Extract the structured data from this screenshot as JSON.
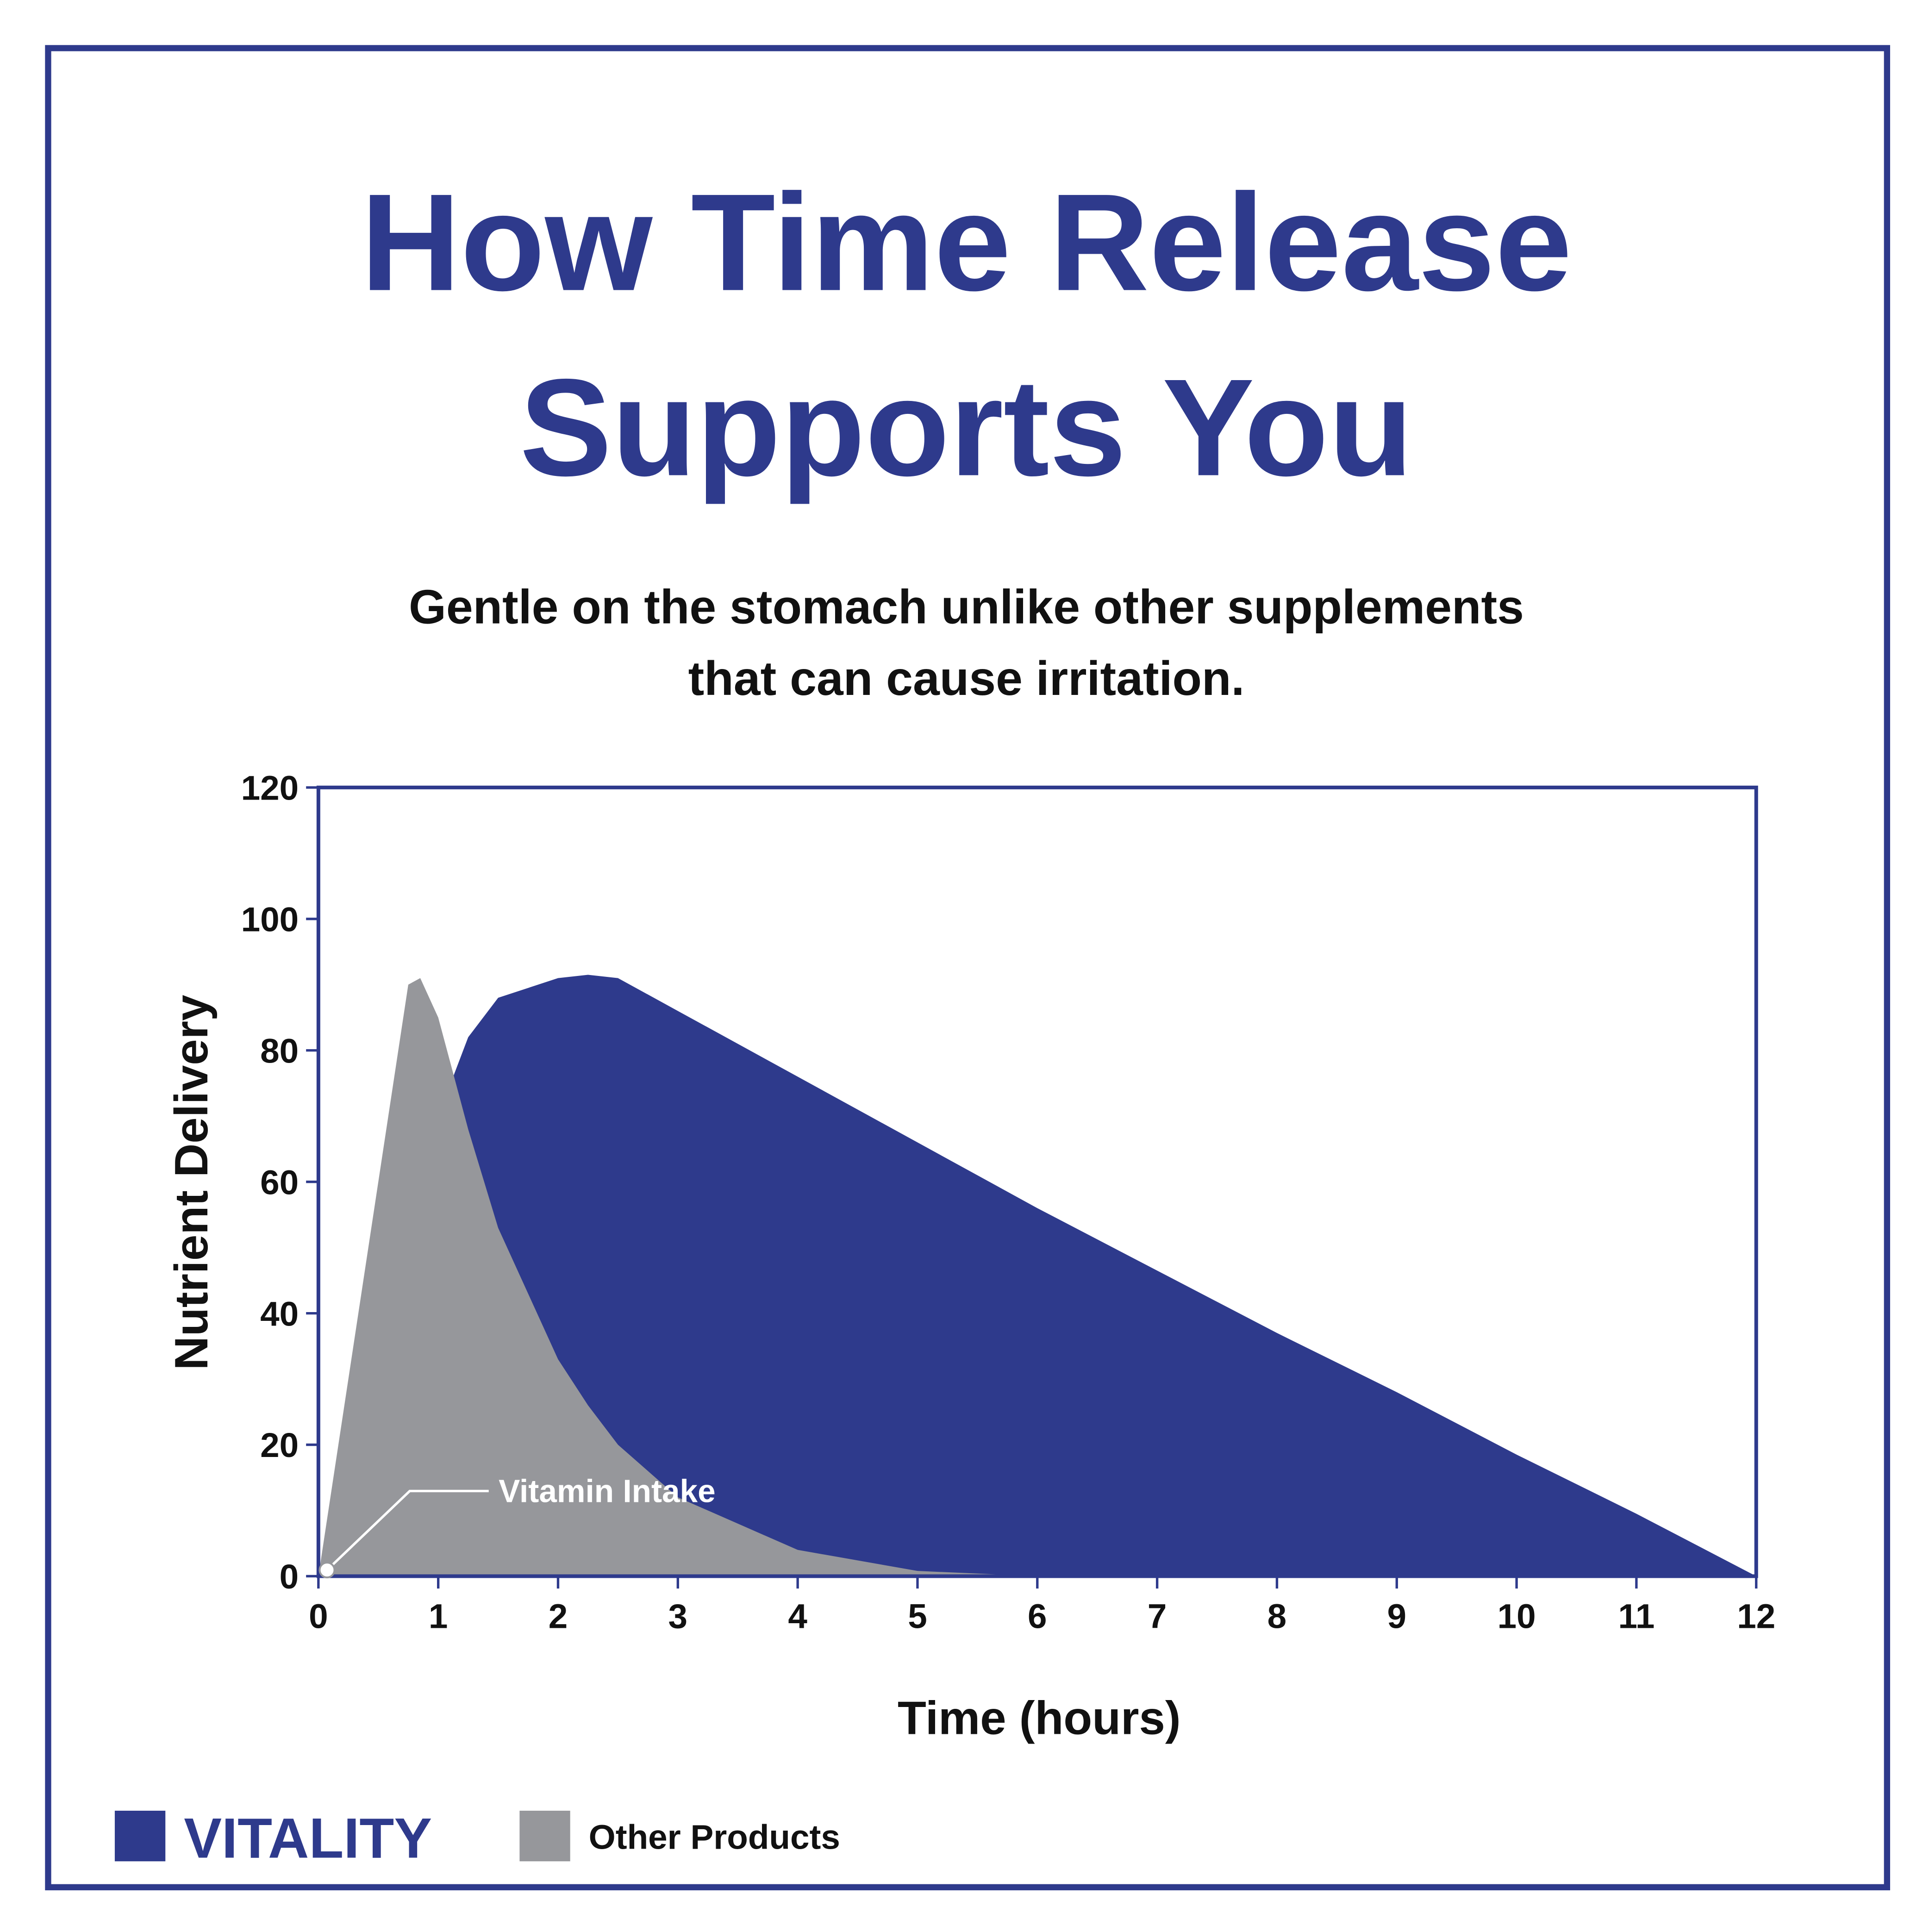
{
  "chart_data": {
    "type": "area",
    "title": [
      "How Time Release",
      "Supports You"
    ],
    "subtitle": [
      "Gentle on the stomach unlike other supplements",
      "that can cause irritation."
    ],
    "x_label": "Time (hours)",
    "y_label": "Nutrient Delivery",
    "annotation": "Vitamin Intake",
    "x": [
      0,
      0.25,
      0.5,
      0.75,
      0.85,
      1,
      1.25,
      1.5,
      2,
      2.25,
      2.5,
      3,
      4,
      5,
      6,
      7,
      8,
      9,
      10,
      11,
      12
    ],
    "series": [
      {
        "name": "VITALITY",
        "color": "#2e3a8c",
        "values": [
          0,
          20,
          40,
          58,
          63,
          70,
          82,
          88,
          91,
          91.5,
          91,
          86,
          76,
          66,
          56,
          46.5,
          37,
          28,
          18.5,
          9.5,
          0
        ]
      },
      {
        "name": "Other Products",
        "color": "#96979b",
        "values": [
          0,
          30,
          60,
          90,
          91,
          85,
          68,
          53,
          33,
          26,
          20,
          12,
          4,
          0.8,
          0,
          0,
          0,
          0,
          0,
          0,
          0
        ]
      }
    ],
    "xlim": [
      0,
      12
    ],
    "xticks": [
      0,
      1,
      2,
      3,
      4,
      5,
      6,
      7,
      8,
      9,
      10,
      11,
      12
    ],
    "ylim": [
      0,
      120
    ],
    "yticks": [
      0,
      20,
      40,
      60,
      80,
      100,
      120
    ],
    "legend": "bottom-left"
  }
}
